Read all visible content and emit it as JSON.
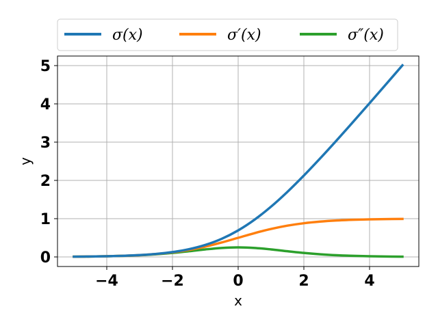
{
  "chart_data": {
    "type": "line",
    "title": "",
    "xlabel": "x",
    "ylabel": "y",
    "xlim": [
      -5.5,
      5.5
    ],
    "ylim": [
      -0.25,
      5.25
    ],
    "grid": true,
    "legend_position": "top",
    "x_ticks": [
      -4,
      -2,
      0,
      2,
      4
    ],
    "x_tick_labels": [
      "−4",
      "−2",
      "0",
      "2",
      "4"
    ],
    "y_ticks": [
      0,
      1,
      2,
      3,
      4,
      5
    ],
    "y_tick_labels": [
      "0",
      "1",
      "2",
      "3",
      "4",
      "5"
    ],
    "x": [
      -5,
      -4.5,
      -4,
      -3.5,
      -3,
      -2.5,
      -2,
      -1.5,
      -1,
      -0.5,
      0,
      0.5,
      1,
      1.5,
      2,
      2.5,
      3,
      3.5,
      4,
      4.5,
      5
    ],
    "series": [
      {
        "name": "σ(x)",
        "color": "#1f77b4",
        "values": [
          0.0067,
          0.011,
          0.0181,
          0.0297,
          0.0486,
          0.0789,
          0.1269,
          0.2014,
          0.3133,
          0.4741,
          0.6931,
          0.9741,
          1.3133,
          1.7014,
          2.1269,
          2.5789,
          3.0486,
          3.5297,
          4.0181,
          4.511,
          5.0067
        ]
      },
      {
        "name": "σ′(x)",
        "color": "#ff7f0e",
        "values": [
          0.0067,
          0.011,
          0.018,
          0.0293,
          0.0474,
          0.0759,
          0.1192,
          0.1824,
          0.2689,
          0.3775,
          0.5,
          0.6225,
          0.7311,
          0.8176,
          0.8808,
          0.9241,
          0.9526,
          0.9707,
          0.982,
          0.989,
          0.9933
        ]
      },
      {
        "name": "σ″(x)",
        "color": "#2ca02c",
        "values": [
          0.0066,
          0.0109,
          0.0177,
          0.0285,
          0.0452,
          0.0701,
          0.105,
          0.1491,
          0.1966,
          0.235,
          0.25,
          0.235,
          0.1966,
          0.1491,
          0.105,
          0.0701,
          0.0452,
          0.0285,
          0.0177,
          0.0109,
          0.0066
        ]
      }
    ]
  }
}
